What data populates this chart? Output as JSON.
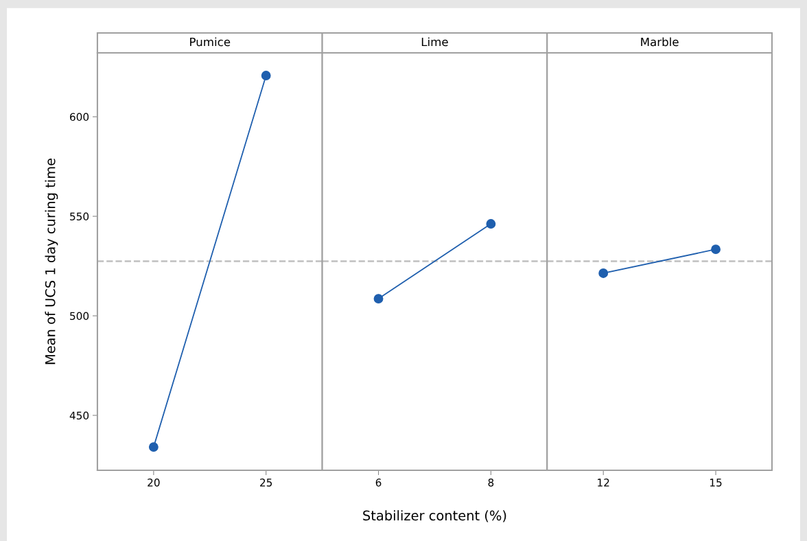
{
  "chart_data": [
    {
      "type": "line",
      "title": "Pumice",
      "ylabel": "Mean of UCS 1 day curing time",
      "categories": [
        "20",
        "25"
      ],
      "series": [
        {
          "color": "#1f5fae",
          "values": [
            434.1,
            620.7
          ]
        }
      ],
      "ylim": [
        422.4,
        632.1
      ],
      "yticks": [
        450,
        500,
        550,
        600
      ],
      "marker": "circle",
      "line_style": "solid",
      "ref_lines": [
        {
          "axis": "y",
          "value": 527.4,
          "color": "#c0c0c0",
          "line_style": "dashed"
        }
      ]
    },
    {
      "type": "line",
      "title": "Lime",
      "xlabel": "Stabilizer content (%)",
      "categories": [
        "6",
        "8"
      ],
      "series": [
        {
          "color": "#1f5fae",
          "values": [
            508.6,
            546.2
          ]
        }
      ],
      "ylim": [
        422.4,
        632.1
      ],
      "yticks": [
        450,
        500,
        550,
        600
      ],
      "tick_labels": "x",
      "marker": "circle",
      "line_style": "solid",
      "ref_lines": [
        {
          "axis": "y",
          "value": 527.4,
          "color": "#c0c0c0",
          "line_style": "dashed"
        }
      ]
    },
    {
      "type": "line",
      "title": "Marble",
      "categories": [
        "12",
        "15"
      ],
      "series": [
        {
          "color": "#1f5fae",
          "values": [
            521.4,
            533.4
          ]
        }
      ],
      "ylim": [
        422.4,
        632.1
      ],
      "yticks": [
        450,
        500,
        550,
        600
      ],
      "tick_labels": "x",
      "marker": "circle",
      "line_style": "solid",
      "ref_lines": [
        {
          "axis": "y",
          "value": 527.4,
          "color": "#c0c0c0",
          "line_style": "dashed"
        }
      ]
    }
  ]
}
